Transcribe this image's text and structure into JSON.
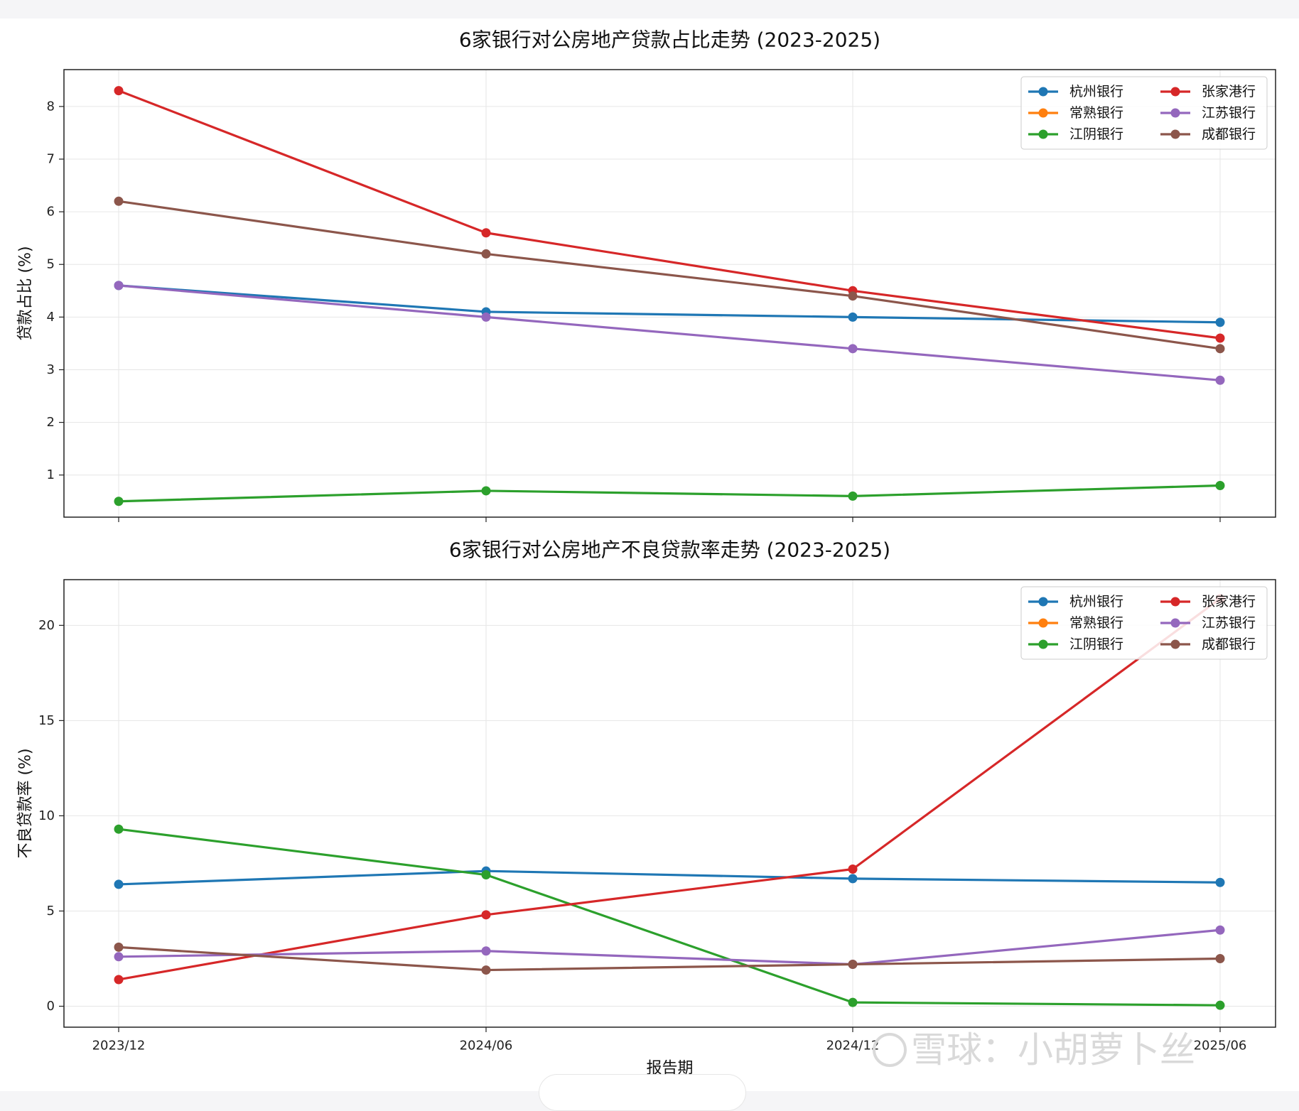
{
  "watermark": "雪球：小胡萝卜丝",
  "colors": {
    "杭州银行": "#1f77b4",
    "常熟银行": "#ff7f0e",
    "江阴银行": "#2ca02c",
    "张家港行": "#d62728",
    "江苏银行": "#9467bd",
    "成都银行": "#8c564b"
  },
  "chart_data": [
    {
      "type": "line",
      "title": "6家银行对公房地产贷款占比走势 (2023-2025)",
      "xlabel": "",
      "ylabel": "贷款占比 (%)",
      "categories": [
        "2023/12",
        "2024/06",
        "2024/12",
        "2025/06"
      ],
      "ylim": [
        0.2,
        8.7
      ],
      "yticks": [
        1,
        2,
        3,
        4,
        5,
        6,
        7,
        8
      ],
      "grid": true,
      "legend_position": "top-right",
      "legend_columns": 2,
      "series": [
        {
          "name": "杭州银行",
          "values": [
            4.6,
            4.1,
            4.0,
            3.9
          ]
        },
        {
          "name": "张家港行",
          "values": [
            8.3,
            5.6,
            4.5,
            3.6
          ]
        },
        {
          "name": "常熟银行",
          "values": [
            null,
            null,
            null,
            null
          ]
        },
        {
          "name": "江苏银行",
          "values": [
            4.6,
            4.0,
            3.4,
            2.8
          ]
        },
        {
          "name": "江阴银行",
          "values": [
            0.5,
            0.7,
            0.6,
            0.8
          ]
        },
        {
          "name": "成都银行",
          "values": [
            6.2,
            5.2,
            4.4,
            3.4
          ]
        }
      ]
    },
    {
      "type": "line",
      "title": "6家银行对公房地产不良贷款率走势 (2023-2025)",
      "xlabel": "报告期",
      "ylabel": "不良贷款率 (%)",
      "categories": [
        "2023/12",
        "2024/06",
        "2024/12",
        "2025/06"
      ],
      "ylim": [
        -1.1,
        22.4
      ],
      "yticks": [
        0,
        5,
        10,
        15,
        20
      ],
      "grid": true,
      "legend_position": "top-right",
      "legend_columns": 2,
      "series": [
        {
          "name": "杭州银行",
          "values": [
            6.4,
            7.1,
            6.7,
            6.5
          ]
        },
        {
          "name": "张家港行",
          "values": [
            1.4,
            4.8,
            7.2,
            21.4
          ]
        },
        {
          "name": "常熟银行",
          "values": [
            null,
            null,
            null,
            null
          ]
        },
        {
          "name": "江苏银行",
          "values": [
            2.6,
            2.9,
            2.2,
            4.0
          ]
        },
        {
          "name": "江阴银行",
          "values": [
            9.3,
            6.9,
            0.2,
            0.05
          ]
        },
        {
          "name": "成都银行",
          "values": [
            3.1,
            1.9,
            2.2,
            2.5
          ]
        }
      ]
    }
  ]
}
